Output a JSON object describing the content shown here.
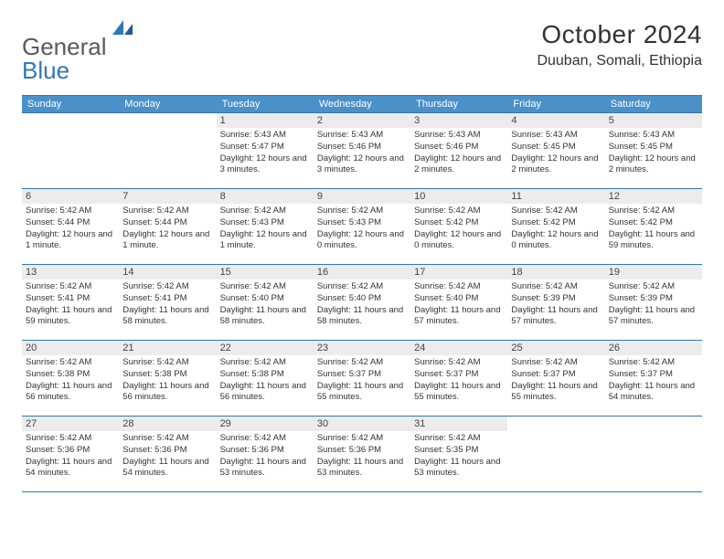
{
  "logo": {
    "text1": "General",
    "text2": "Blue"
  },
  "title": "October 2024",
  "location": "Duuban, Somali, Ethiopia",
  "colors": {
    "header_bg": "#4a90c9",
    "rule": "#2f78b7",
    "daynum_bg": "#ececec",
    "text": "#333333",
    "logo_gray": "#5a5a5a",
    "logo_blue": "#2f78b7",
    "page_bg": "#ffffff"
  },
  "typography": {
    "title_fontsize": 28,
    "location_fontsize": 16,
    "dayname_fontsize": 11,
    "daynum_fontsize": 11,
    "info_fontsize": 9.5
  },
  "daynames": [
    "Sunday",
    "Monday",
    "Tuesday",
    "Wednesday",
    "Thursday",
    "Friday",
    "Saturday"
  ],
  "weeks": [
    [
      {
        "blank": true
      },
      {
        "blank": true
      },
      {
        "n": "1",
        "sunrise": "5:43 AM",
        "sunset": "5:47 PM",
        "daylight": "12 hours and 3 minutes."
      },
      {
        "n": "2",
        "sunrise": "5:43 AM",
        "sunset": "5:46 PM",
        "daylight": "12 hours and 3 minutes."
      },
      {
        "n": "3",
        "sunrise": "5:43 AM",
        "sunset": "5:46 PM",
        "daylight": "12 hours and 2 minutes."
      },
      {
        "n": "4",
        "sunrise": "5:43 AM",
        "sunset": "5:45 PM",
        "daylight": "12 hours and 2 minutes."
      },
      {
        "n": "5",
        "sunrise": "5:43 AM",
        "sunset": "5:45 PM",
        "daylight": "12 hours and 2 minutes."
      }
    ],
    [
      {
        "n": "6",
        "sunrise": "5:42 AM",
        "sunset": "5:44 PM",
        "daylight": "12 hours and 1 minute."
      },
      {
        "n": "7",
        "sunrise": "5:42 AM",
        "sunset": "5:44 PM",
        "daylight": "12 hours and 1 minute."
      },
      {
        "n": "8",
        "sunrise": "5:42 AM",
        "sunset": "5:43 PM",
        "daylight": "12 hours and 1 minute."
      },
      {
        "n": "9",
        "sunrise": "5:42 AM",
        "sunset": "5:43 PM",
        "daylight": "12 hours and 0 minutes."
      },
      {
        "n": "10",
        "sunrise": "5:42 AM",
        "sunset": "5:42 PM",
        "daylight": "12 hours and 0 minutes."
      },
      {
        "n": "11",
        "sunrise": "5:42 AM",
        "sunset": "5:42 PM",
        "daylight": "12 hours and 0 minutes."
      },
      {
        "n": "12",
        "sunrise": "5:42 AM",
        "sunset": "5:42 PM",
        "daylight": "11 hours and 59 minutes."
      }
    ],
    [
      {
        "n": "13",
        "sunrise": "5:42 AM",
        "sunset": "5:41 PM",
        "daylight": "11 hours and 59 minutes."
      },
      {
        "n": "14",
        "sunrise": "5:42 AM",
        "sunset": "5:41 PM",
        "daylight": "11 hours and 58 minutes."
      },
      {
        "n": "15",
        "sunrise": "5:42 AM",
        "sunset": "5:40 PM",
        "daylight": "11 hours and 58 minutes."
      },
      {
        "n": "16",
        "sunrise": "5:42 AM",
        "sunset": "5:40 PM",
        "daylight": "11 hours and 58 minutes."
      },
      {
        "n": "17",
        "sunrise": "5:42 AM",
        "sunset": "5:40 PM",
        "daylight": "11 hours and 57 minutes."
      },
      {
        "n": "18",
        "sunrise": "5:42 AM",
        "sunset": "5:39 PM",
        "daylight": "11 hours and 57 minutes."
      },
      {
        "n": "19",
        "sunrise": "5:42 AM",
        "sunset": "5:39 PM",
        "daylight": "11 hours and 57 minutes."
      }
    ],
    [
      {
        "n": "20",
        "sunrise": "5:42 AM",
        "sunset": "5:38 PM",
        "daylight": "11 hours and 56 minutes."
      },
      {
        "n": "21",
        "sunrise": "5:42 AM",
        "sunset": "5:38 PM",
        "daylight": "11 hours and 56 minutes."
      },
      {
        "n": "22",
        "sunrise": "5:42 AM",
        "sunset": "5:38 PM",
        "daylight": "11 hours and 56 minutes."
      },
      {
        "n": "23",
        "sunrise": "5:42 AM",
        "sunset": "5:37 PM",
        "daylight": "11 hours and 55 minutes."
      },
      {
        "n": "24",
        "sunrise": "5:42 AM",
        "sunset": "5:37 PM",
        "daylight": "11 hours and 55 minutes."
      },
      {
        "n": "25",
        "sunrise": "5:42 AM",
        "sunset": "5:37 PM",
        "daylight": "11 hours and 55 minutes."
      },
      {
        "n": "26",
        "sunrise": "5:42 AM",
        "sunset": "5:37 PM",
        "daylight": "11 hours and 54 minutes."
      }
    ],
    [
      {
        "n": "27",
        "sunrise": "5:42 AM",
        "sunset": "5:36 PM",
        "daylight": "11 hours and 54 minutes."
      },
      {
        "n": "28",
        "sunrise": "5:42 AM",
        "sunset": "5:36 PM",
        "daylight": "11 hours and 54 minutes."
      },
      {
        "n": "29",
        "sunrise": "5:42 AM",
        "sunset": "5:36 PM",
        "daylight": "11 hours and 53 minutes."
      },
      {
        "n": "30",
        "sunrise": "5:42 AM",
        "sunset": "5:36 PM",
        "daylight": "11 hours and 53 minutes."
      },
      {
        "n": "31",
        "sunrise": "5:42 AM",
        "sunset": "5:35 PM",
        "daylight": "11 hours and 53 minutes."
      },
      {
        "blank": true
      },
      {
        "blank": true
      }
    ]
  ],
  "labels": {
    "sunrise": "Sunrise:",
    "sunset": "Sunset:",
    "daylight": "Daylight:"
  }
}
